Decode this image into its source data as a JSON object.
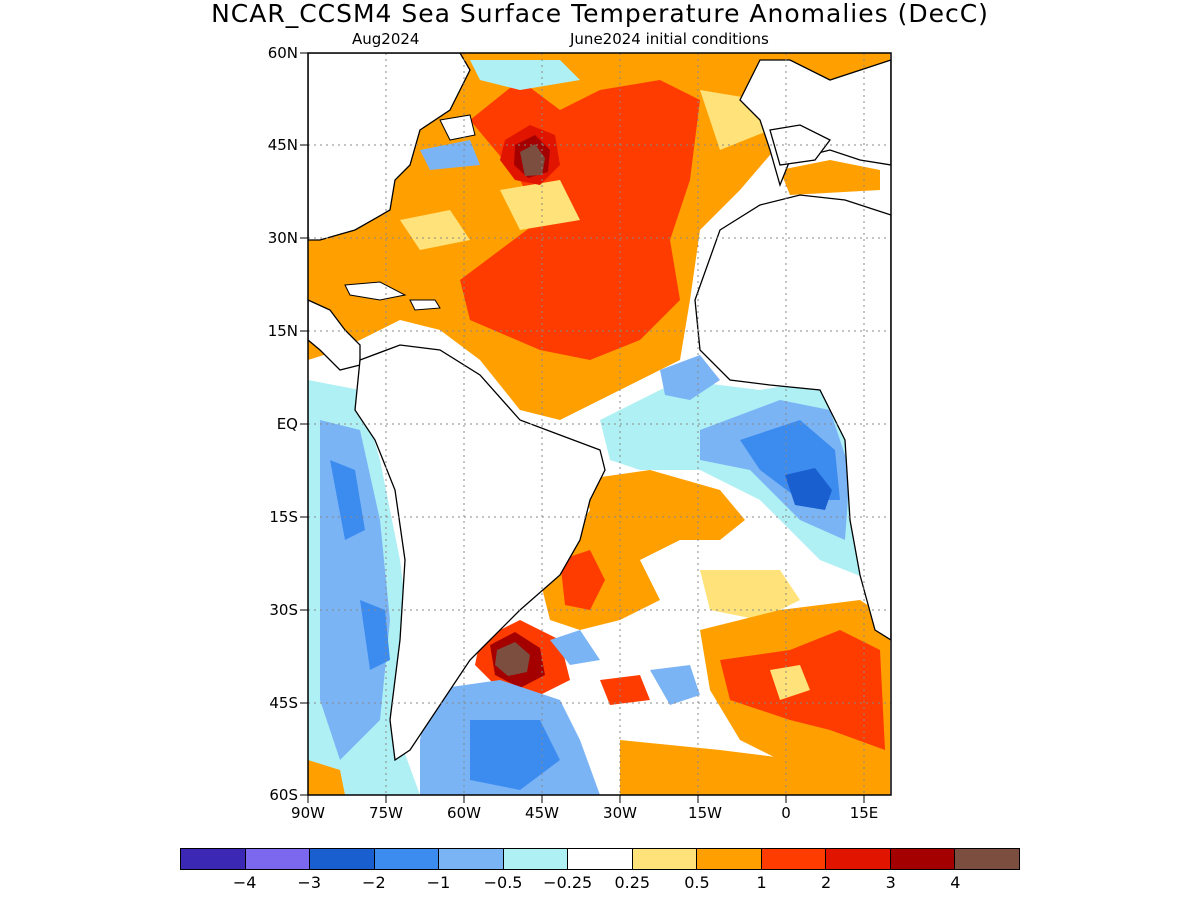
{
  "title": "NCAR_CCSM4 Sea Surface Temperature Anomalies (DecC)",
  "subtitle_left": "Aug2024",
  "subtitle_right": "June2024 initial conditions",
  "lat_labels": [
    "60N",
    "45N",
    "30N",
    "15N",
    "EQ",
    "15S",
    "30S",
    "45S",
    "60S"
  ],
  "lon_labels": [
    "90W",
    "75W",
    "60W",
    "45W",
    "30W",
    "15W",
    "0",
    "15E"
  ],
  "colorbar": {
    "colors": [
      "#3b28b4",
      "#7b68ee",
      "#1a5fd0",
      "#3c8cf0",
      "#7bb4f5",
      "#aff0f5",
      "#ffffff",
      "#ffe27a",
      "#ffa000",
      "#ff3c00",
      "#e11400",
      "#a50000",
      "#7b4e40"
    ],
    "labels": [
      "−4",
      "−3",
      "−2",
      "−1",
      "−0.5",
      "−0.25",
      "0.25",
      "0.5",
      "1",
      "2",
      "3",
      "4"
    ]
  }
}
